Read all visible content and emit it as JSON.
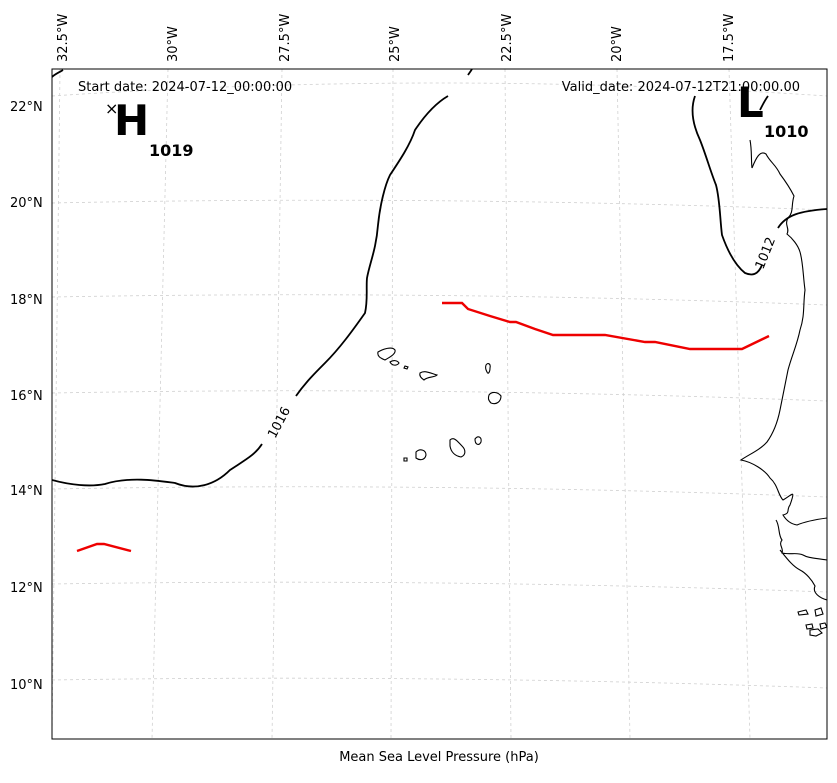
{
  "header": {
    "start_date": "Start date: 2024-07-12_00:00:00",
    "valid_date": "Valid_date: 2024-07-12T21:00:00.00"
  },
  "footer": {
    "caption": "Mean Sea Level Pressure (hPa)"
  },
  "axes": {
    "lon_ticks": [
      "32.5°W",
      "30°W",
      "27.5°W",
      "25°W",
      "22.5°W",
      "20°W",
      "17.5°W"
    ],
    "lat_ticks": [
      "22°N",
      "20°N",
      "18°N",
      "16°N",
      "14°N",
      "12°N",
      "10°N"
    ]
  },
  "pressure_systems": [
    {
      "type": "H",
      "value": "1019",
      "marker": "×"
    },
    {
      "type": "L",
      "value": "1010"
    }
  ],
  "isobar_labels": [
    "1016",
    "1012"
  ],
  "colors": {
    "isobar": "#000000",
    "front": "#ee0000",
    "grid": "#d0d0d0"
  }
}
